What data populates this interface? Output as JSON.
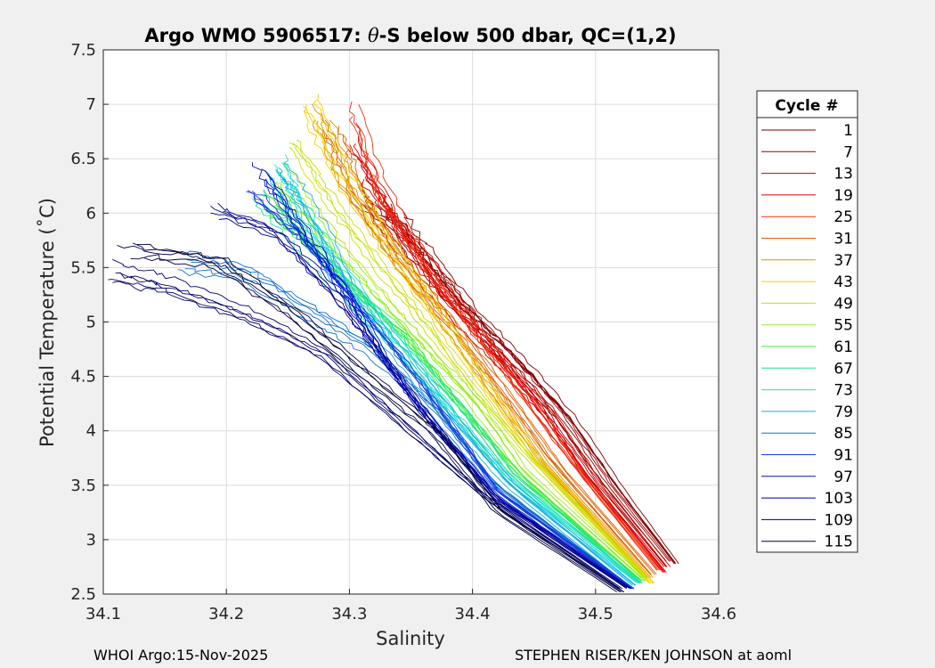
{
  "chart_data": {
    "type": "line",
    "title_prefix": "Argo WMO 5906517: ",
    "title_theta": "θ",
    "title_suffix": "-S below 500 dbar,  QC=(1,2)",
    "xlabel": "Salinity",
    "ylabel": "Potential Temperature (˚C)",
    "xlim": [
      34.1,
      34.6
    ],
    "ylim": [
      2.5,
      7.5
    ],
    "xticks": [
      34.1,
      34.2,
      34.3,
      34.4,
      34.5,
      34.6
    ],
    "xtick_labels": [
      "34.1",
      "34.2",
      "34.3",
      "34.4",
      "34.5",
      "34.6"
    ],
    "yticks": [
      2.5,
      3,
      3.5,
      4,
      4.5,
      5,
      5.5,
      6,
      6.5,
      7,
      7.5
    ],
    "ytick_labels": [
      "2.5",
      "3",
      "3.5",
      "4",
      "4.5",
      "5",
      "5.5",
      "6",
      "6.5",
      "7",
      "7.5"
    ],
    "grid": true,
    "legend": {
      "title": "Cycle #",
      "placement": "right-outside",
      "entries": [
        "1",
        "7",
        "13",
        "19",
        "25",
        "31",
        "37",
        "43",
        "49",
        "55",
        "61",
        "67",
        "73",
        "79",
        "85",
        "91",
        "97",
        "103",
        "109",
        "115"
      ],
      "colors": [
        "#7f0000",
        "#9b0000",
        "#c00000",
        "#e00000",
        "#f03010",
        "#e06000",
        "#e09000",
        "#f0d000",
        "#c8e000",
        "#90f020",
        "#40f040",
        "#20e090",
        "#20e0d0",
        "#10b0e0",
        "#1070d0",
        "#1040e0",
        "#0010d0",
        "#000090",
        "#00006a",
        "#000040"
      ]
    },
    "series": [
      {
        "name": "1",
        "color": "#7f0000",
        "x": [
          34.33,
          34.36,
          34.4,
          34.44,
          34.48,
          34.52,
          34.565
        ],
        "y": [
          6.0,
          5.6,
          5.05,
          4.6,
          4.1,
          3.45,
          2.78
        ]
      },
      {
        "name": "7",
        "color": "#9b0000",
        "x": [
          34.32,
          34.35,
          34.39,
          34.43,
          34.47,
          34.51,
          34.56
        ],
        "y": [
          6.1,
          5.7,
          5.15,
          4.65,
          4.15,
          3.5,
          2.8
        ]
      },
      {
        "name": "13",
        "color": "#c00000",
        "x": [
          34.31,
          34.34,
          34.38,
          34.42,
          34.46,
          34.5,
          34.558
        ],
        "y": [
          6.3,
          5.8,
          5.2,
          4.7,
          4.2,
          3.55,
          2.75
        ]
      },
      {
        "name": "19",
        "color": "#e00000",
        "x": [
          34.3,
          34.33,
          34.37,
          34.41,
          34.45,
          34.49,
          34.555
        ],
        "y": [
          6.6,
          6.0,
          5.3,
          4.8,
          4.25,
          3.6,
          2.7
        ]
      },
      {
        "name": "25",
        "color": "#f03010",
        "x": [
          34.3,
          34.32,
          34.36,
          34.4,
          34.44,
          34.48,
          34.55
        ],
        "y": [
          6.9,
          6.2,
          5.5,
          4.9,
          4.3,
          3.7,
          2.72
        ]
      },
      {
        "name": "31",
        "color": "#e06000",
        "x": [
          34.29,
          34.31,
          34.35,
          34.39,
          34.43,
          34.47,
          34.548
        ],
        "y": [
          6.8,
          6.2,
          5.5,
          4.95,
          4.35,
          3.7,
          2.68
        ]
      },
      {
        "name": "37",
        "color": "#e09000",
        "x": [
          34.28,
          34.3,
          34.34,
          34.38,
          34.42,
          34.46,
          34.545
        ],
        "y": [
          6.9,
          6.3,
          5.6,
          5.0,
          4.35,
          3.7,
          2.65
        ]
      },
      {
        "name": "43",
        "color": "#f0d000",
        "x": [
          34.265,
          34.29,
          34.33,
          34.37,
          34.41,
          34.45,
          34.545
        ],
        "y": [
          7.0,
          6.4,
          5.7,
          5.05,
          4.4,
          3.75,
          2.6
        ]
      },
      {
        "name": "49",
        "color": "#c8e000",
        "x": [
          34.25,
          34.28,
          34.32,
          34.36,
          34.4,
          34.45,
          34.54
        ],
        "y": [
          6.6,
          6.1,
          5.5,
          4.95,
          4.35,
          3.7,
          2.65
        ]
      },
      {
        "name": "55",
        "color": "#90f020",
        "x": [
          34.24,
          34.27,
          34.31,
          34.35,
          34.4,
          34.44,
          34.54
        ],
        "y": [
          6.3,
          5.9,
          5.4,
          4.9,
          4.3,
          3.65,
          2.62
        ]
      },
      {
        "name": "61",
        "color": "#40f040",
        "x": [
          34.24,
          34.27,
          34.3,
          34.35,
          34.39,
          34.44,
          34.538
        ],
        "y": [
          6.0,
          5.7,
          5.35,
          4.85,
          4.25,
          3.6,
          2.6
        ]
      },
      {
        "name": "67",
        "color": "#20e090",
        "x": [
          34.23,
          34.26,
          34.3,
          34.34,
          34.39,
          34.43,
          34.535
        ],
        "y": [
          6.2,
          5.8,
          5.3,
          4.8,
          4.2,
          3.6,
          2.62
        ]
      },
      {
        "name": "73",
        "color": "#20e0d0",
        "x": [
          34.24,
          34.26,
          34.3,
          34.34,
          34.38,
          34.43,
          34.535
        ],
        "y": [
          6.45,
          6.0,
          5.35,
          4.8,
          4.2,
          3.55,
          2.6
        ]
      },
      {
        "name": "79",
        "color": "#10b0e0",
        "x": [
          34.24,
          34.27,
          34.3,
          34.34,
          34.38,
          34.43,
          34.53
        ],
        "y": [
          6.4,
          5.9,
          5.25,
          4.7,
          4.15,
          3.5,
          2.58
        ]
      },
      {
        "name": "85",
        "color": "#1070d0",
        "x": [
          34.17,
          34.22,
          34.27,
          34.32,
          34.37,
          34.42,
          34.53
        ],
        "y": [
          5.55,
          5.45,
          5.1,
          4.75,
          4.2,
          3.5,
          2.56
        ]
      },
      {
        "name": "91",
        "color": "#1040e0",
        "x": [
          34.22,
          34.26,
          34.3,
          34.34,
          34.38,
          34.42,
          34.53
        ],
        "y": [
          6.2,
          5.8,
          5.25,
          4.7,
          4.1,
          3.45,
          2.55
        ]
      },
      {
        "name": "97",
        "color": "#0010d0",
        "x": [
          34.23,
          34.26,
          34.3,
          34.33,
          34.37,
          34.42,
          34.528
        ],
        "y": [
          6.4,
          5.9,
          5.25,
          4.65,
          4.05,
          3.4,
          2.55
        ]
      },
      {
        "name": "103",
        "color": "#000090",
        "x": [
          34.19,
          34.24,
          34.29,
          34.33,
          34.37,
          34.42,
          34.525
        ],
        "y": [
          6.0,
          5.8,
          5.2,
          4.6,
          4.0,
          3.35,
          2.56
        ]
      },
      {
        "name": "109",
        "color": "#00006a",
        "x": [
          34.11,
          34.16,
          34.22,
          34.28,
          34.34,
          34.41,
          34.52
        ],
        "y": [
          5.45,
          5.3,
          5.05,
          4.7,
          4.1,
          3.4,
          2.55
        ]
      },
      {
        "name": "115",
        "color": "#000040",
        "x": [
          34.12,
          34.19,
          34.25,
          34.31,
          34.37,
          34.42,
          34.52
        ],
        "y": [
          5.6,
          5.5,
          5.05,
          4.5,
          3.95,
          3.25,
          2.52
        ]
      }
    ]
  },
  "footer": {
    "left": "WHOI Argo:15-Nov-2025",
    "right": "STEPHEN RISER/KEN JOHNSON at aoml"
  }
}
